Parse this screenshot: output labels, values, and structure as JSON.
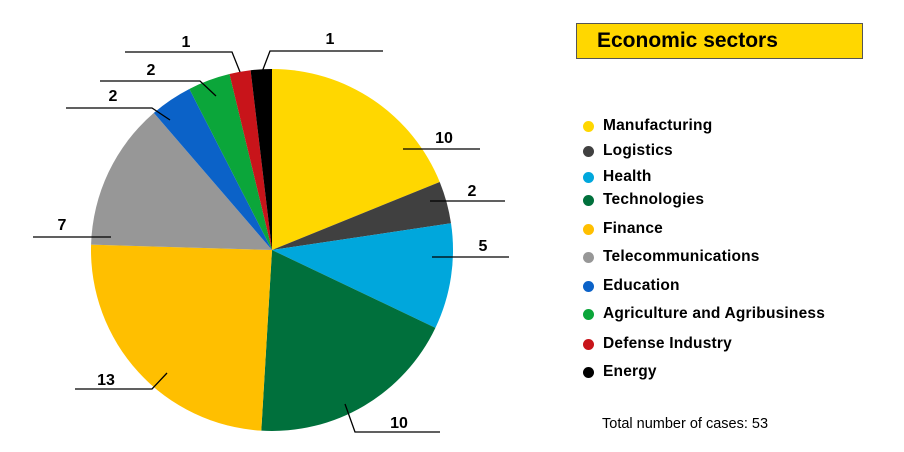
{
  "chart_data": {
    "type": "pie",
    "title": "Economic sectors",
    "categories": [
      "Manufacturing",
      "Logistics",
      "Health",
      "Technologies",
      "Finance",
      "Telecommunications",
      "Education",
      "Agriculture and Agribusiness",
      "Defense Industry",
      "Energy"
    ],
    "values": [
      10,
      2,
      5,
      10,
      13,
      7,
      2,
      2,
      1,
      1
    ],
    "colors": [
      "#ffd700",
      "#404040",
      "#00a7dc",
      "#00703c",
      "#ffbf00",
      "#979797",
      "#0b62c8",
      "#0ba63a",
      "#c8141a",
      "#000000"
    ],
    "start": "12 o'clock, clockwise",
    "legend_position": "right",
    "total_label": "Total number of cases:",
    "total_value": "53"
  }
}
